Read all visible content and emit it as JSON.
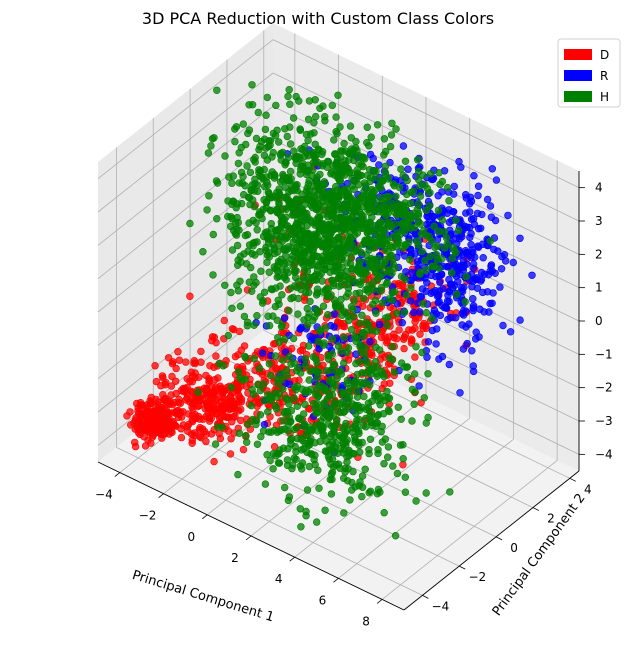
{
  "chart_data": {
    "type": "scatter",
    "title": "3D PCA Reduction with Custom Class Colors",
    "xlabel": "Principal Component 1",
    "ylabel": "Principal Component 2",
    "zlabel": "",
    "projection": "3d",
    "xlim": [
      -5,
      9
    ],
    "ylim": [
      -5,
      4.5
    ],
    "zlim": [
      -4.5,
      4.5
    ],
    "xticks": [
      -4,
      -2,
      0,
      2,
      4,
      6,
      8
    ],
    "yticks": [
      -4,
      -2,
      0,
      2,
      4
    ],
    "zticks": [
      -4,
      -3,
      -2,
      -1,
      0,
      1,
      2,
      3,
      4
    ],
    "grid": true,
    "legend": "top-right",
    "series": [
      {
        "name": "D",
        "color": "#ff0000",
        "clusters": [
          {
            "center": [
              -4.0,
              -3.0,
              -3.8
            ],
            "spread": [
              0.4,
              0.4,
              0.2
            ],
            "count": 200
          },
          {
            "center": [
              -2.5,
              -2.0,
              -3.2
            ],
            "spread": [
              1.0,
              0.7,
              0.4
            ],
            "count": 240
          },
          {
            "center": [
              0.0,
              -1.0,
              -2.2
            ],
            "spread": [
              1.5,
              1.0,
              0.6
            ],
            "count": 220
          },
          {
            "center": [
              2.5,
              0.5,
              -0.8
            ],
            "spread": [
              1.2,
              1.0,
              0.8
            ],
            "count": 170
          },
          {
            "center": [
              4.0,
              1.0,
              0.3
            ],
            "spread": [
              1.0,
              0.8,
              0.8
            ],
            "count": 90
          },
          {
            "center": [
              -1.5,
              2.5,
              0.0
            ],
            "spread": [
              0.8,
              0.8,
              1.2
            ],
            "count": 30
          }
        ]
      },
      {
        "name": "R",
        "color": "#0000ff",
        "clusters": [
          {
            "center": [
              4.5,
              2.5,
              1.2
            ],
            "spread": [
              1.3,
              1.0,
              1.1
            ],
            "count": 380
          },
          {
            "center": [
              3.0,
              1.5,
              2.6
            ],
            "spread": [
              1.5,
              1.0,
              0.6
            ],
            "count": 140
          },
          {
            "center": [
              2.5,
              -2.0,
              -0.5
            ],
            "spread": [
              1.2,
              0.8,
              0.8
            ],
            "count": 70
          }
        ]
      },
      {
        "name": "H",
        "color": "#008000",
        "clusters": [
          {
            "center": [
              -1.0,
              2.0,
              0.8
            ],
            "spread": [
              1.7,
              1.2,
              1.4
            ],
            "count": 1000
          },
          {
            "center": [
              2.0,
              1.5,
              2.2
            ],
            "spread": [
              1.8,
              1.0,
              0.8
            ],
            "count": 320
          },
          {
            "center": [
              3.0,
              -2.5,
              -2.0
            ],
            "spread": [
              1.7,
              1.0,
              0.9
            ],
            "count": 380
          },
          {
            "center": [
              4.0,
              -1.0,
              -1.0
            ],
            "spread": [
              1.0,
              1.0,
              1.0
            ],
            "count": 120
          }
        ]
      }
    ]
  }
}
